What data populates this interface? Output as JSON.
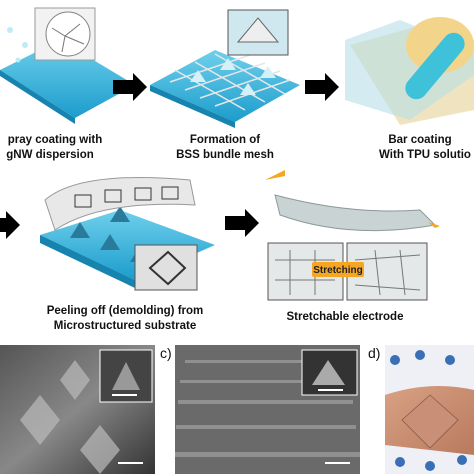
{
  "steps": [
    {
      "lines": [
        "pray coating with",
        "gNW dispersion"
      ]
    },
    {
      "lines": [
        "Formation of",
        "BSS bundle mesh"
      ]
    },
    {
      "lines": [
        "Bar coating",
        "With TPU solutio"
      ]
    },
    {
      "lines": [
        "Peeling off (demolding) from",
        "Microstructured substrate"
      ]
    },
    {
      "lines": [
        "Stretchable electrode"
      ]
    }
  ],
  "stretch_label": "Stretching",
  "panels": [
    {
      "label": "c)"
    },
    {
      "label": "d)"
    }
  ]
}
